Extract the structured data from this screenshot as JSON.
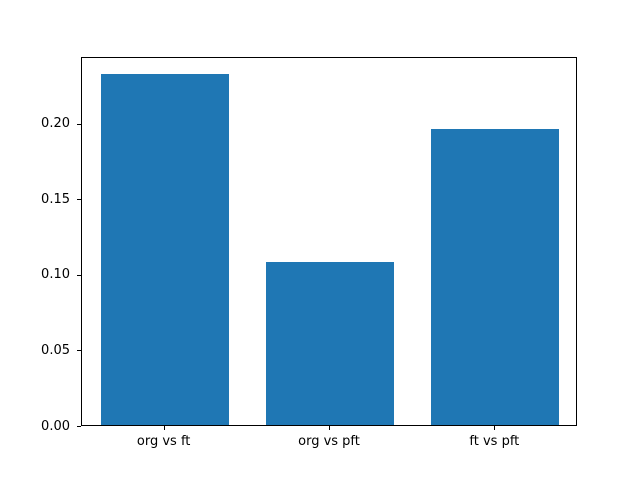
{
  "chart_data": {
    "type": "bar",
    "title": "",
    "xlabel": "",
    "ylabel": "",
    "categories": [
      "org vs ft",
      "org vs pft",
      "ft vs pft"
    ],
    "values": [
      0.232,
      0.108,
      0.196
    ],
    "ylim": [
      0,
      0.2441
    ],
    "ytick_labels": [
      "0.00",
      "0.05",
      "0.10",
      "0.15",
      "0.20"
    ],
    "ytick_values": [
      0.0,
      0.05,
      0.1,
      0.15,
      0.2
    ],
    "bar_color": "#1f77b4",
    "bar_width_fraction": 0.258,
    "grid": "off",
    "legend": "none",
    "spine_color": "#000000",
    "background_color": "#ffffff"
  }
}
